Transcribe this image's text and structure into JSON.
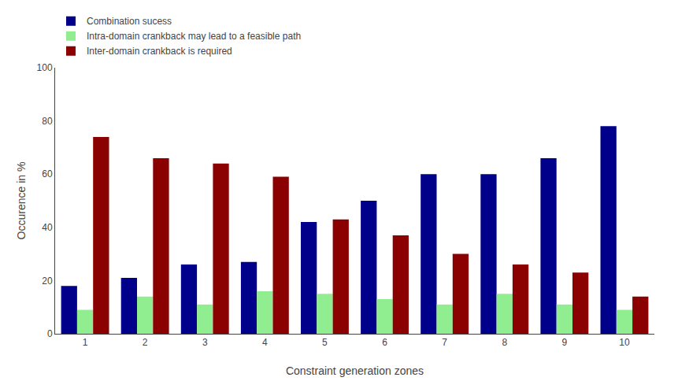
{
  "chart_data": {
    "type": "bar",
    "categories": [
      1,
      2,
      3,
      4,
      5,
      6,
      7,
      8,
      9,
      10
    ],
    "series": [
      {
        "name": "Combination sucess",
        "color": "#00008B",
        "values": [
          18,
          21,
          26,
          27,
          42,
          50,
          60,
          60,
          66,
          78
        ]
      },
      {
        "name": "Intra-domain crankback may lead to a feasible path",
        "color": "#90EE90",
        "values": [
          9,
          14,
          11,
          16,
          15,
          13,
          11,
          15,
          11,
          9
        ]
      },
      {
        "name": "Inter-domain crankback is required",
        "color": "#8B0000",
        "values": [
          74,
          66,
          64,
          59,
          43,
          37,
          30,
          26,
          23,
          14
        ]
      }
    ],
    "xlabel": "Constraint generation zones",
    "ylabel": "Occurence in %",
    "ylim": [
      0,
      100
    ],
    "yticks": [
      0,
      20,
      40,
      60,
      80,
      100
    ],
    "grid": false,
    "legend": "upper left"
  }
}
